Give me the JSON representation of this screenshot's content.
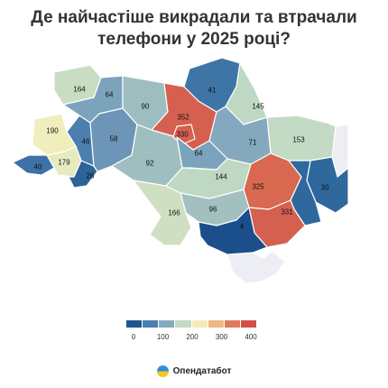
{
  "title": {
    "line1": "Де найчастіше викрадали та втрачали",
    "line2": "телефони у 2025 році?"
  },
  "regions": [
    {
      "id": "volyn",
      "value": "164",
      "color": "#c9ddc3"
    },
    {
      "id": "rivne",
      "value": "64",
      "color": "#7ba3bc"
    },
    {
      "id": "zhytomyr",
      "value": "90",
      "color": "#9ebdc0"
    },
    {
      "id": "kyiv-oblast",
      "value": "352",
      "color": "#d5604f"
    },
    {
      "id": "kyiv-city",
      "value": "330",
      "color": "#d5604f"
    },
    {
      "id": "chernihiv",
      "value": "41",
      "color": "#3f74a7"
    },
    {
      "id": "sumy",
      "value": "145",
      "color": "#bed8c4"
    },
    {
      "id": "lviv",
      "value": "190",
      "color": "#f0eebc"
    },
    {
      "id": "ternopil",
      "value": "46",
      "color": "#4a7fae"
    },
    {
      "id": "khmelnytskyi",
      "value": "58",
      "color": "#6c95b7"
    },
    {
      "id": "vinnytsia",
      "value": "92",
      "color": "#9fbec0"
    },
    {
      "id": "cherkasy",
      "value": "64",
      "color": "#7ba3bc"
    },
    {
      "id": "poltava",
      "value": "71",
      "color": "#84a8bd"
    },
    {
      "id": "kharkiv",
      "value": "153",
      "color": "#c3dbc4"
    },
    {
      "id": "zakarpattia",
      "value": "40",
      "color": "#3d72a6"
    },
    {
      "id": "ivano-frankivsk",
      "value": "179",
      "color": "#e6ebbf"
    },
    {
      "id": "chernivtsi",
      "value": "26",
      "color": "#2c6399"
    },
    {
      "id": "kirovohrad",
      "value": "144",
      "color": "#bed8c4"
    },
    {
      "id": "dnipropetrovsk",
      "value": "325",
      "color": "#d8684f"
    },
    {
      "id": "luhansk",
      "value": "30",
      "color": "#2f689c"
    },
    {
      "id": "odesa",
      "value": "166",
      "color": "#cfe0c2"
    },
    {
      "id": "mykolaiv",
      "value": "96",
      "color": "#a3c0c1"
    },
    {
      "id": "zaporizhzhia",
      "value": "331",
      "color": "#d5604f"
    },
    {
      "id": "donetsk",
      "value": "",
      "color": "#2f689c"
    },
    {
      "id": "kherson",
      "value": "4",
      "color": "#1b4f8c"
    },
    {
      "id": "crimea",
      "value": "",
      "color": "#eceef4"
    },
    {
      "id": "occupied-east",
      "value": "",
      "color": "#eceef4"
    }
  ],
  "legend": {
    "segments": [
      "#1f5791",
      "#4b80ad",
      "#86abbf",
      "#c4dac3",
      "#f3ecb8",
      "#f0b880",
      "#e07a5a",
      "#d24f45"
    ],
    "ticks": [
      "0",
      "100",
      "200",
      "300",
      "400"
    ],
    "range": [
      0,
      400
    ]
  },
  "brand": {
    "name": "Опендатабот",
    "icon": "opendatabot-logo-icon"
  }
}
